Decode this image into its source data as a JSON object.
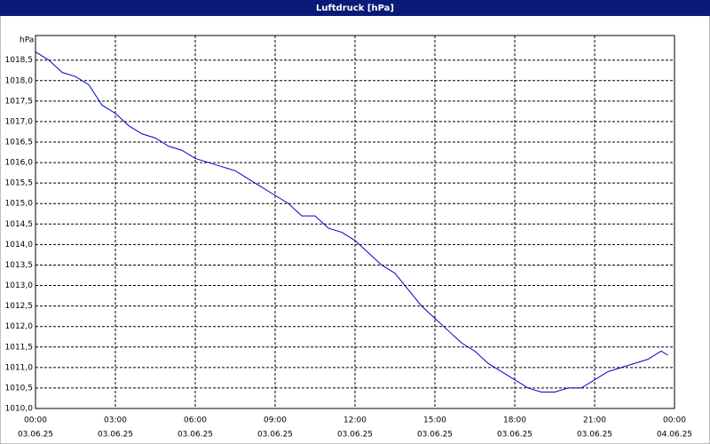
{
  "chart_data": {
    "type": "line",
    "title": "Luftdruck [hPa]",
    "y_unit": "hPa",
    "x": [
      0,
      0.5,
      1,
      1.5,
      2,
      2.5,
      3,
      3.5,
      4,
      4.5,
      5,
      5.5,
      6,
      6.5,
      7,
      7.5,
      8,
      8.5,
      9,
      9.5,
      10,
      10.5,
      11,
      11.5,
      12,
      12.5,
      13,
      13.5,
      14,
      14.5,
      15,
      15.5,
      16,
      16.5,
      17,
      17.5,
      18,
      18.5,
      19,
      19.5,
      20,
      20.5,
      21,
      21.5,
      22,
      22.5,
      23,
      23.5,
      23.75
    ],
    "series": [
      {
        "name": "Luftdruck",
        "color": "#0000c8",
        "values": [
          1018.7,
          1018.5,
          1018.2,
          1018.1,
          1017.9,
          1017.4,
          1017.2,
          1016.9,
          1016.7,
          1016.6,
          1016.4,
          1016.3,
          1016.1,
          1016.0,
          1015.9,
          1015.8,
          1015.6,
          1015.4,
          1015.2,
          1015.0,
          1014.7,
          1014.7,
          1014.4,
          1014.3,
          1014.1,
          1013.8,
          1013.5,
          1013.3,
          1012.9,
          1012.5,
          1012.2,
          1011.9,
          1011.6,
          1011.4,
          1011.1,
          1010.9,
          1010.7,
          1010.5,
          1010.4,
          1010.4,
          1010.5,
          1010.5,
          1010.7,
          1010.9,
          1011.0,
          1011.1,
          1011.2,
          1011.4,
          1011.3
        ]
      }
    ],
    "xlim": [
      0,
      24
    ],
    "xticks": [
      {
        "value": 0,
        "label": "00:00"
      },
      {
        "value": 3,
        "label": "03:00"
      },
      {
        "value": 6,
        "label": "06:00"
      },
      {
        "value": 9,
        "label": "09:00"
      },
      {
        "value": 12,
        "label": "12:00"
      },
      {
        "value": 15,
        "label": "15:00"
      },
      {
        "value": 18,
        "label": "18:00"
      },
      {
        "value": 21,
        "label": "21:00"
      },
      {
        "value": 24,
        "label": "00:00"
      }
    ],
    "xtick_dates": [
      "03.06.25",
      "03.06.25",
      "03.06.25",
      "03.06.25",
      "03.06.25",
      "03.06.25",
      "03.06.25",
      "03.06.25",
      "04.06.25"
    ],
    "ylim": [
      1010,
      1019.1
    ],
    "yticks": [
      {
        "value": 1010,
        "label": "1010,0"
      },
      {
        "value": 1010.5,
        "label": "1010,5"
      },
      {
        "value": 1011,
        "label": "1011,0"
      },
      {
        "value": 1011.5,
        "label": "1011,5"
      },
      {
        "value": 1012,
        "label": "1012,0"
      },
      {
        "value": 1012.5,
        "label": "1012,5"
      },
      {
        "value": 1013,
        "label": "1013,0"
      },
      {
        "value": 1013.5,
        "label": "1013,5"
      },
      {
        "value": 1014,
        "label": "1014,0"
      },
      {
        "value": 1014.5,
        "label": "1014,5"
      },
      {
        "value": 1015,
        "label": "1015,0"
      },
      {
        "value": 1015.5,
        "label": "1015,5"
      },
      {
        "value": 1016,
        "label": "1016,0"
      },
      {
        "value": 1016.5,
        "label": "1016,5"
      },
      {
        "value": 1017,
        "label": "1017,0"
      },
      {
        "value": 1017.5,
        "label": "1017,5"
      },
      {
        "value": 1018,
        "label": "1018,0"
      },
      {
        "value": 1018.5,
        "label": "1018,5"
      }
    ],
    "grid": true
  }
}
